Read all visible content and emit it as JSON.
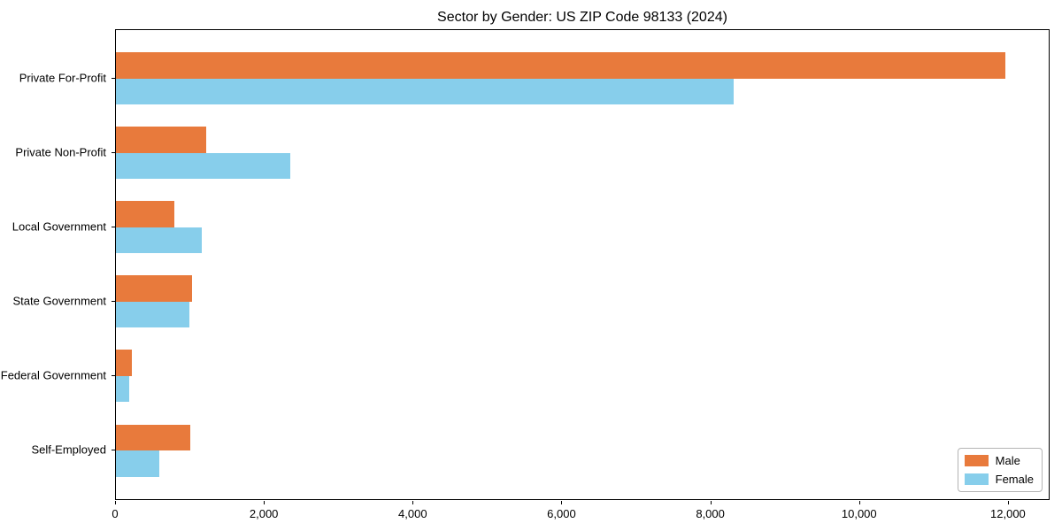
{
  "chart_data": {
    "type": "bar",
    "orientation": "horizontal",
    "title": "Sector by Gender: US ZIP Code 98133 (2024)",
    "categories": [
      "Private For-Profit",
      "Private Non-Profit",
      "Local Government",
      "State Government",
      "Federal Government",
      "Self-Employed"
    ],
    "series": [
      {
        "name": "Male",
        "color": "#e87a3c",
        "values": [
          11950,
          1210,
          790,
          1020,
          215,
          1005
        ]
      },
      {
        "name": "Female",
        "color": "#87ceeb",
        "values": [
          8300,
          2340,
          1150,
          985,
          178,
          583
        ]
      }
    ],
    "xlabel": "",
    "ylabel": "",
    "xlim": [
      0,
      12560
    ],
    "xticks": [
      0,
      2000,
      4000,
      6000,
      8000,
      10000,
      12000
    ],
    "xtick_labels": [
      "0",
      "2,000",
      "4,000",
      "6,000",
      "8,000",
      "10,000",
      "12,000"
    ],
    "grid": false,
    "legend_position": "lower right",
    "plot_background": "#ffffff",
    "spine_color": "#000000"
  }
}
